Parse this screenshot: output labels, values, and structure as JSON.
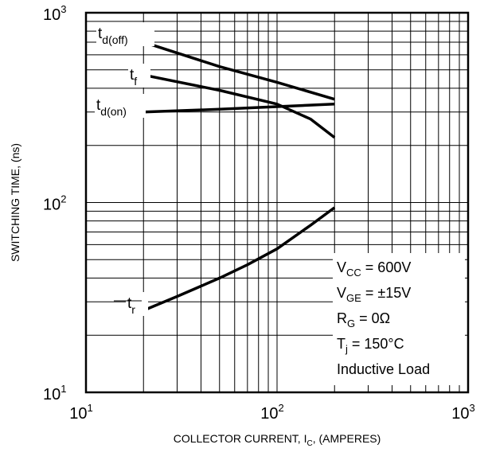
{
  "chart_data": {
    "type": "line",
    "xlabel": "COLLECTOR CURRENT, I",
    "xlabel_sub": "C",
    "xlabel_suffix": ", (AMPERES)",
    "ylabel": "SWITCHING TIME, (ns)",
    "xscale": "log",
    "yscale": "log",
    "xlim": [
      10,
      1000
    ],
    "ylim": [
      10,
      1000
    ],
    "grid": true,
    "x_ticks": [
      {
        "base": "10",
        "exp": "1",
        "value": 10
      },
      {
        "base": "10",
        "exp": "2",
        "value": 100
      },
      {
        "base": "10",
        "exp": "3",
        "value": 1000
      }
    ],
    "y_ticks": [
      {
        "base": "10",
        "exp": "1",
        "value": 10
      },
      {
        "base": "10",
        "exp": "2",
        "value": 100
      },
      {
        "base": "10",
        "exp": "3",
        "value": 1000
      }
    ],
    "series": [
      {
        "name": "t",
        "sub": "d(off)",
        "x": [
          20,
          50,
          100,
          200
        ],
        "y": [
          700,
          520,
          430,
          350
        ]
      },
      {
        "name": "t",
        "sub": "f",
        "x": [
          20,
          50,
          100,
          150,
          200
        ],
        "y": [
          470,
          390,
          330,
          275,
          220
        ]
      },
      {
        "name": "t",
        "sub": "d(on)",
        "x": [
          20,
          50,
          100,
          200
        ],
        "y": [
          300,
          310,
          320,
          330
        ]
      },
      {
        "name": "t",
        "sub": "r",
        "x": [
          20,
          30,
          50,
          70,
          100,
          150,
          200
        ],
        "y": [
          27,
          32,
          40,
          47,
          57,
          76,
          94
        ]
      }
    ],
    "conditions": [
      {
        "text": "V",
        "sub": "CC",
        "rest": " = 600V"
      },
      {
        "text": "V",
        "sub": "GE",
        "rest": " = ±15V"
      },
      {
        "text": "R",
        "sub": "G",
        "rest": " = 0Ω"
      },
      {
        "text": "T",
        "sub": "j",
        "rest": " = 150°C"
      },
      {
        "text": "Inductive Load",
        "sub": "",
        "rest": ""
      }
    ]
  }
}
